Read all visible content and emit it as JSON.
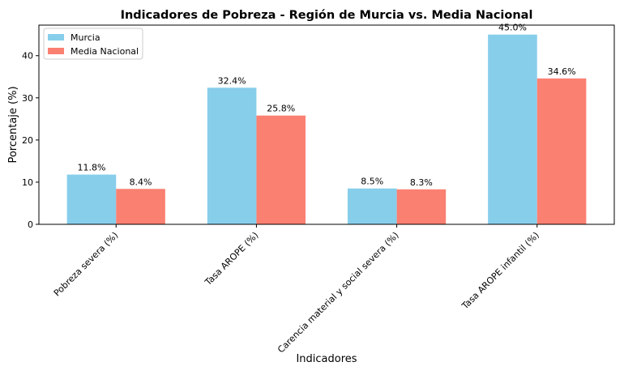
{
  "chart_data": {
    "type": "bar",
    "title": "Indicadores de Pobreza - Región de Murcia vs. Media Nacional",
    "xlabel": "Indicadores",
    "ylabel": "Porcentaje (%)",
    "categories": [
      "Pobreza severa (%)",
      "Tasa AROPE (%)",
      "Carencia material y social severa (%)",
      "Tasa AROPE infantil (%)"
    ],
    "series": [
      {
        "name": "Murcia",
        "color": "#87CEEB",
        "values": [
          11.8,
          32.4,
          8.5,
          45.0
        ],
        "labels": [
          "11.8%",
          "32.4%",
          "8.5%",
          "45.0%"
        ]
      },
      {
        "name": "Media Nacional",
        "color": "#FA8072",
        "values": [
          8.4,
          25.8,
          8.3,
          34.6
        ],
        "labels": [
          "8.4%",
          "25.8%",
          "8.3%",
          "34.6%"
        ]
      }
    ],
    "ylim": [
      0,
      47.25
    ],
    "yticks": [
      0,
      10,
      20,
      30,
      40
    ],
    "grid": false,
    "legend_position": "top-left"
  }
}
